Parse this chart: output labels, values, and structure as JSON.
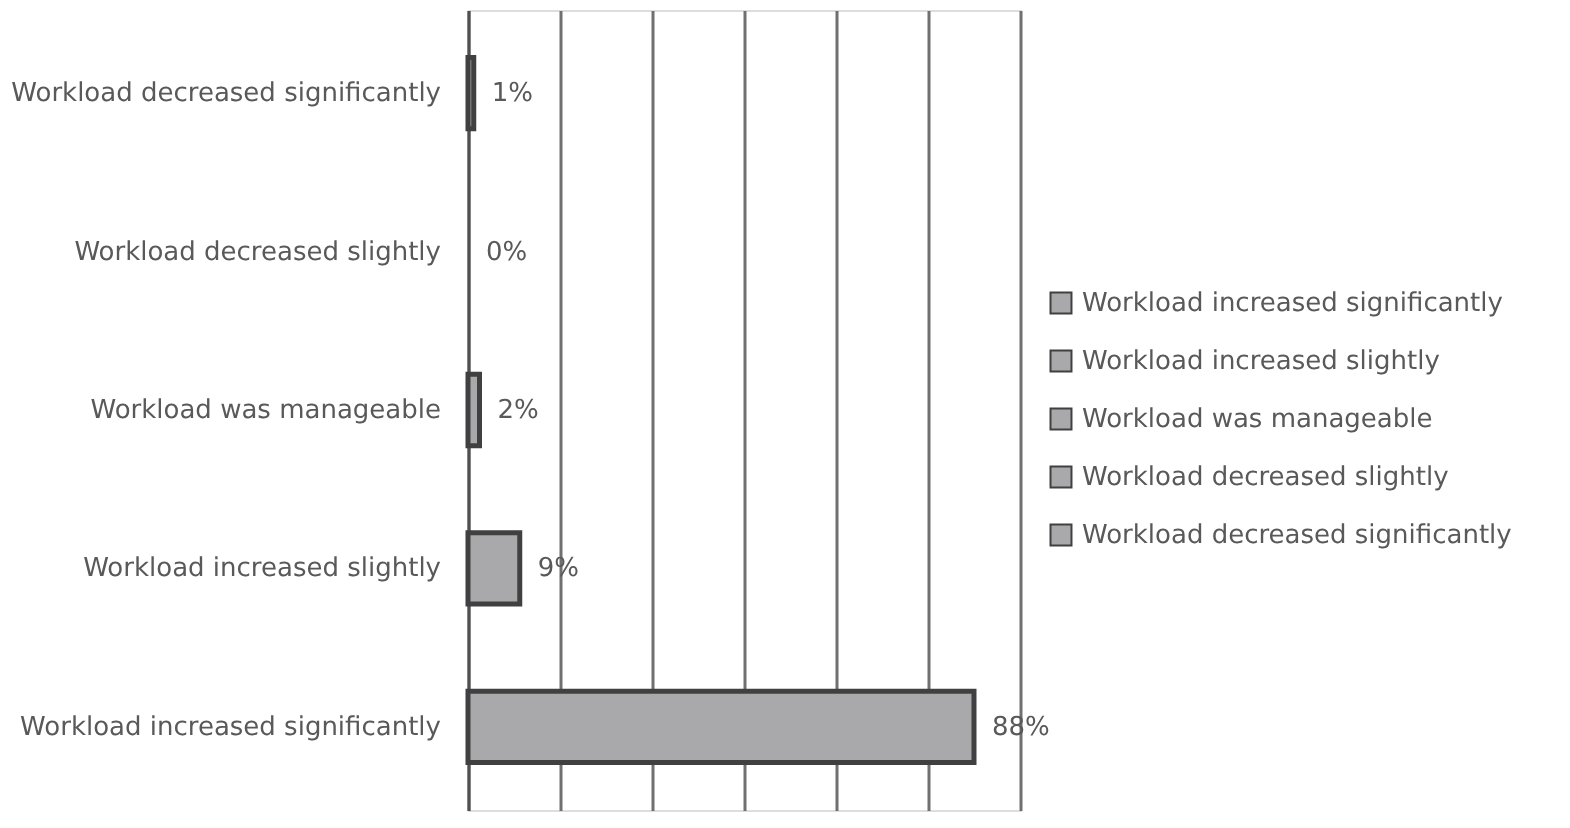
{
  "chart_data": {
    "type": "bar",
    "orientation": "horizontal",
    "categories": [
      "Workload decreased significantly",
      "Workload decreased slightly",
      "Workload was manageable",
      "Workload increased slightly",
      "Workload increased significantly"
    ],
    "series": [
      {
        "name": "Workload increased significantly",
        "color": "#a9a9ab",
        "values": [
          null,
          null,
          null,
          null,
          88
        ],
        "value_labels": [
          null,
          null,
          null,
          null,
          "88%"
        ]
      },
      {
        "name": "Workload increased slightly",
        "color": "#a9a9ab",
        "values": [
          null,
          null,
          null,
          9,
          null
        ],
        "value_labels": [
          null,
          null,
          null,
          "9%",
          null
        ]
      },
      {
        "name": "Workload was manageable",
        "color": "#a9a9ab",
        "values": [
          null,
          null,
          2,
          null,
          null
        ],
        "value_labels": [
          null,
          null,
          "2%",
          null,
          null
        ]
      },
      {
        "name": "Workload decreased slightly",
        "color": "#a9a9ab",
        "values": [
          null,
          0,
          null,
          null,
          null
        ],
        "value_labels": [
          null,
          "0%",
          null,
          null,
          null
        ]
      },
      {
        "name": "Workload decreased significantly",
        "color": "#a9a9ab",
        "values": [
          1,
          null,
          null,
          null,
          null
        ],
        "value_labels": [
          "1%",
          null,
          null,
          null,
          null
        ]
      }
    ],
    "xlim": [
      0,
      96
    ],
    "xticks": [
      {
        "value": 0,
        "label": null
      },
      {
        "value": 16,
        "label": null
      },
      {
        "value": 32,
        "label": null
      },
      {
        "value": 48,
        "label": null
      },
      {
        "value": 64,
        "label": null
      },
      {
        "value": 80,
        "label": null
      },
      {
        "value": 96,
        "label": null
      }
    ],
    "tick_labels": "y",
    "grid": "x",
    "legend": "right"
  }
}
